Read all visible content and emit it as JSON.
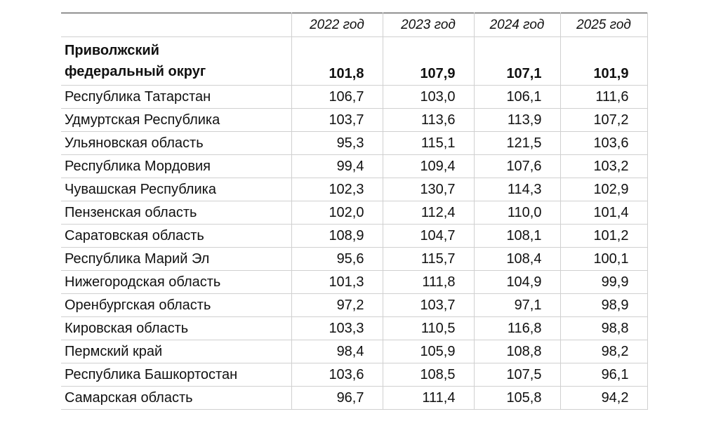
{
  "table": {
    "columns": [
      "2022 год",
      "2023 год",
      "2024 год",
      "2025 год"
    ],
    "total": {
      "label": [
        "Приволжский",
        "федеральный округ"
      ],
      "values": [
        "101,8",
        "107,9",
        "107,1",
        "101,9"
      ]
    },
    "rows": [
      {
        "label": "Республика Татарстан",
        "values": [
          "106,7",
          "103,0",
          "106,1",
          "111,6"
        ]
      },
      {
        "label": "Удмуртская Республика",
        "values": [
          "103,7",
          "113,6",
          "113,9",
          "107,2"
        ]
      },
      {
        "label": "Ульяновская область",
        "values": [
          "95,3",
          "115,1",
          "121,5",
          "103,6"
        ]
      },
      {
        "label": "Республика Мордовия",
        "values": [
          "99,4",
          "109,4",
          "107,6",
          "103,2"
        ]
      },
      {
        "label": "Чувашская Республика",
        "values": [
          "102,3",
          "130,7",
          "114,3",
          "102,9"
        ]
      },
      {
        "label": "Пензенская область",
        "values": [
          "102,0",
          "112,4",
          "110,0",
          "101,4"
        ]
      },
      {
        "label": "Саратовская область",
        "values": [
          "108,9",
          "104,7",
          "108,1",
          "101,2"
        ]
      },
      {
        "label": "Республика Марий Эл",
        "values": [
          "95,6",
          "115,7",
          "108,4",
          "100,1"
        ]
      },
      {
        "label": "Нижегородская область",
        "values": [
          "101,3",
          "111,8",
          "104,9",
          "99,9"
        ]
      },
      {
        "label": "Оренбургская область",
        "values": [
          "97,2",
          "103,7",
          "97,1",
          "98,9"
        ]
      },
      {
        "label": "Кировская область",
        "values": [
          "103,3",
          "110,5",
          "116,8",
          "98,8"
        ]
      },
      {
        "label": "Пермский край",
        "values": [
          "98,4",
          "105,9",
          "108,8",
          "98,2"
        ]
      },
      {
        "label": "Республика Башкортостан",
        "values": [
          "103,6",
          "108,5",
          "107,5",
          "96,1"
        ]
      },
      {
        "label": "Самарская область",
        "values": [
          "96,7",
          "111,4",
          "105,8",
          "94,2"
        ]
      }
    ]
  }
}
